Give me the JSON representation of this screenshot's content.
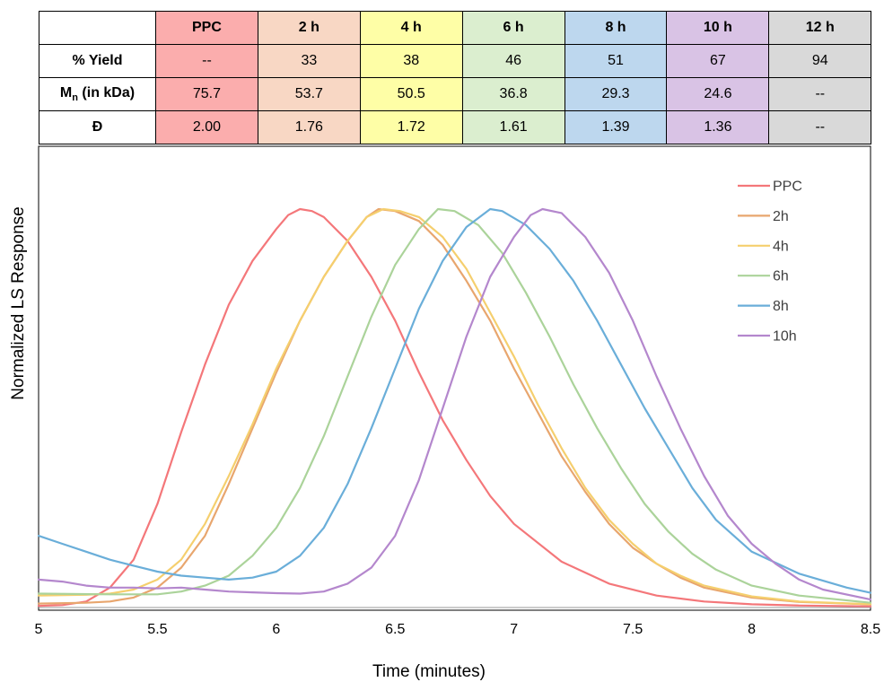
{
  "table": {
    "headers": [
      "PPC",
      "2 h",
      "4 h",
      "6 h",
      "8 h",
      "10 h",
      "12 h"
    ],
    "header_colors": [
      "#fbadad",
      "#f8d7c4",
      "#fefea6",
      "#dbeecf",
      "#bdd7ee",
      "#d9c3e5",
      "#d9d9d9"
    ],
    "rows": [
      {
        "label": "% Yield",
        "values": [
          "--",
          "33",
          "38",
          "46",
          "51",
          "67",
          "94"
        ]
      },
      {
        "label_main": "M",
        "label_sub": "n",
        "label_rest": " (in kDa)",
        "values": [
          "75.7",
          "53.7",
          "50.5",
          "36.8",
          "29.3",
          "24.6",
          "--"
        ]
      },
      {
        "label": "Đ",
        "values": [
          "2.00",
          "1.76",
          "1.72",
          "1.61",
          "1.39",
          "1.36",
          "--"
        ]
      }
    ]
  },
  "chart_data": {
    "type": "line",
    "title": "",
    "xlabel": "Time (minutes)",
    "ylabel": "Normalized LS Response",
    "xlim": [
      5,
      8.5
    ],
    "ylim": [
      0,
      1.0
    ],
    "x_ticks": [
      "5",
      "5.5",
      "6",
      "6.5",
      "7",
      "7.5",
      "8",
      "8.5"
    ],
    "grid": false,
    "legend": "top-right",
    "series": [
      {
        "name": "PPC",
        "color": "#f4777a",
        "points": [
          [
            5.0,
            0.004
          ],
          [
            5.1,
            0.006
          ],
          [
            5.2,
            0.015
          ],
          [
            5.3,
            0.05
          ],
          [
            5.4,
            0.12
          ],
          [
            5.5,
            0.26
          ],
          [
            5.6,
            0.44
          ],
          [
            5.7,
            0.61
          ],
          [
            5.8,
            0.76
          ],
          [
            5.9,
            0.87
          ],
          [
            6.0,
            0.95
          ],
          [
            6.05,
            0.985
          ],
          [
            6.1,
            1.0
          ],
          [
            6.15,
            0.995
          ],
          [
            6.2,
            0.98
          ],
          [
            6.3,
            0.92
          ],
          [
            6.4,
            0.83
          ],
          [
            6.5,
            0.72
          ],
          [
            6.6,
            0.59
          ],
          [
            6.7,
            0.47
          ],
          [
            6.8,
            0.37
          ],
          [
            6.9,
            0.28
          ],
          [
            7.0,
            0.21
          ],
          [
            7.2,
            0.115
          ],
          [
            7.4,
            0.06
          ],
          [
            7.6,
            0.03
          ],
          [
            7.8,
            0.015
          ],
          [
            8.0,
            0.008
          ],
          [
            8.2,
            0.005
          ],
          [
            8.5,
            0.003
          ]
        ]
      },
      {
        "name": "2h",
        "color": "#e8a66e",
        "points": [
          [
            5.0,
            0.01
          ],
          [
            5.2,
            0.012
          ],
          [
            5.3,
            0.015
          ],
          [
            5.4,
            0.025
          ],
          [
            5.5,
            0.05
          ],
          [
            5.6,
            0.1
          ],
          [
            5.7,
            0.18
          ],
          [
            5.8,
            0.31
          ],
          [
            5.9,
            0.45
          ],
          [
            6.0,
            0.59
          ],
          [
            6.1,
            0.72
          ],
          [
            6.2,
            0.83
          ],
          [
            6.3,
            0.92
          ],
          [
            6.38,
            0.98
          ],
          [
            6.43,
            1.0
          ],
          [
            6.5,
            0.995
          ],
          [
            6.6,
            0.97
          ],
          [
            6.7,
            0.91
          ],
          [
            6.8,
            0.82
          ],
          [
            6.9,
            0.72
          ],
          [
            7.0,
            0.6
          ],
          [
            7.1,
            0.49
          ],
          [
            7.2,
            0.38
          ],
          [
            7.3,
            0.29
          ],
          [
            7.4,
            0.21
          ],
          [
            7.5,
            0.15
          ],
          [
            7.6,
            0.11
          ],
          [
            7.7,
            0.075
          ],
          [
            7.8,
            0.05
          ],
          [
            8.0,
            0.025
          ],
          [
            8.2,
            0.014
          ],
          [
            8.5,
            0.008
          ]
        ]
      },
      {
        "name": "4h",
        "color": "#f5cf6e",
        "points": [
          [
            5.0,
            0.03
          ],
          [
            5.2,
            0.032
          ],
          [
            5.3,
            0.035
          ],
          [
            5.4,
            0.045
          ],
          [
            5.5,
            0.07
          ],
          [
            5.6,
            0.12
          ],
          [
            5.7,
            0.21
          ],
          [
            5.8,
            0.33
          ],
          [
            5.9,
            0.46
          ],
          [
            6.0,
            0.6
          ],
          [
            6.1,
            0.72
          ],
          [
            6.2,
            0.83
          ],
          [
            6.3,
            0.92
          ],
          [
            6.38,
            0.98
          ],
          [
            6.45,
            1.0
          ],
          [
            6.52,
            0.995
          ],
          [
            6.6,
            0.98
          ],
          [
            6.7,
            0.93
          ],
          [
            6.8,
            0.85
          ],
          [
            6.9,
            0.74
          ],
          [
            7.0,
            0.63
          ],
          [
            7.1,
            0.51
          ],
          [
            7.2,
            0.4
          ],
          [
            7.3,
            0.3
          ],
          [
            7.4,
            0.22
          ],
          [
            7.5,
            0.16
          ],
          [
            7.6,
            0.11
          ],
          [
            7.7,
            0.08
          ],
          [
            7.8,
            0.055
          ],
          [
            8.0,
            0.028
          ],
          [
            8.2,
            0.015
          ],
          [
            8.5,
            0.008
          ]
        ]
      },
      {
        "name": "6h",
        "color": "#abd39a",
        "points": [
          [
            5.0,
            0.035
          ],
          [
            5.3,
            0.033
          ],
          [
            5.5,
            0.033
          ],
          [
            5.6,
            0.04
          ],
          [
            5.7,
            0.055
          ],
          [
            5.8,
            0.08
          ],
          [
            5.9,
            0.13
          ],
          [
            6.0,
            0.2
          ],
          [
            6.1,
            0.3
          ],
          [
            6.2,
            0.43
          ],
          [
            6.3,
            0.58
          ],
          [
            6.4,
            0.73
          ],
          [
            6.5,
            0.86
          ],
          [
            6.6,
            0.95
          ],
          [
            6.68,
            1.0
          ],
          [
            6.75,
            0.995
          ],
          [
            6.85,
            0.96
          ],
          [
            6.95,
            0.89
          ],
          [
            7.05,
            0.79
          ],
          [
            7.15,
            0.68
          ],
          [
            7.25,
            0.56
          ],
          [
            7.35,
            0.45
          ],
          [
            7.45,
            0.35
          ],
          [
            7.55,
            0.26
          ],
          [
            7.65,
            0.19
          ],
          [
            7.75,
            0.135
          ],
          [
            7.85,
            0.095
          ],
          [
            8.0,
            0.055
          ],
          [
            8.2,
            0.03
          ],
          [
            8.5,
            0.012
          ]
        ]
      },
      {
        "name": "8h",
        "color": "#6aaed9",
        "points": [
          [
            5.0,
            0.18
          ],
          [
            5.1,
            0.16
          ],
          [
            5.2,
            0.14
          ],
          [
            5.3,
            0.12
          ],
          [
            5.4,
            0.105
          ],
          [
            5.5,
            0.09
          ],
          [
            5.6,
            0.08
          ],
          [
            5.7,
            0.075
          ],
          [
            5.8,
            0.07
          ],
          [
            5.9,
            0.075
          ],
          [
            6.0,
            0.09
          ],
          [
            6.1,
            0.13
          ],
          [
            6.2,
            0.2
          ],
          [
            6.3,
            0.31
          ],
          [
            6.4,
            0.45
          ],
          [
            6.5,
            0.6
          ],
          [
            6.6,
            0.75
          ],
          [
            6.7,
            0.87
          ],
          [
            6.8,
            0.955
          ],
          [
            6.9,
            1.0
          ],
          [
            6.95,
            0.995
          ],
          [
            7.05,
            0.96
          ],
          [
            7.15,
            0.9
          ],
          [
            7.25,
            0.82
          ],
          [
            7.35,
            0.72
          ],
          [
            7.45,
            0.61
          ],
          [
            7.55,
            0.5
          ],
          [
            7.65,
            0.4
          ],
          [
            7.75,
            0.3
          ],
          [
            7.85,
            0.22
          ],
          [
            8.0,
            0.14
          ],
          [
            8.2,
            0.085
          ],
          [
            8.4,
            0.05
          ],
          [
            8.5,
            0.037
          ]
        ]
      },
      {
        "name": "10h",
        "color": "#b487cd",
        "points": [
          [
            5.0,
            0.07
          ],
          [
            5.1,
            0.065
          ],
          [
            5.2,
            0.055
          ],
          [
            5.3,
            0.05
          ],
          [
            5.4,
            0.05
          ],
          [
            5.5,
            0.048
          ],
          [
            5.6,
            0.05
          ],
          [
            5.7,
            0.045
          ],
          [
            5.8,
            0.04
          ],
          [
            5.9,
            0.038
          ],
          [
            6.0,
            0.036
          ],
          [
            6.1,
            0.035
          ],
          [
            6.2,
            0.04
          ],
          [
            6.3,
            0.06
          ],
          [
            6.4,
            0.1
          ],
          [
            6.5,
            0.18
          ],
          [
            6.6,
            0.32
          ],
          [
            6.7,
            0.5
          ],
          [
            6.8,
            0.68
          ],
          [
            6.9,
            0.83
          ],
          [
            7.0,
            0.93
          ],
          [
            7.07,
            0.985
          ],
          [
            7.12,
            1.0
          ],
          [
            7.2,
            0.99
          ],
          [
            7.3,
            0.93
          ],
          [
            7.4,
            0.84
          ],
          [
            7.5,
            0.72
          ],
          [
            7.6,
            0.58
          ],
          [
            7.7,
            0.45
          ],
          [
            7.8,
            0.33
          ],
          [
            7.9,
            0.23
          ],
          [
            8.0,
            0.16
          ],
          [
            8.1,
            0.11
          ],
          [
            8.2,
            0.07
          ],
          [
            8.3,
            0.045
          ],
          [
            8.5,
            0.02
          ]
        ]
      }
    ]
  }
}
